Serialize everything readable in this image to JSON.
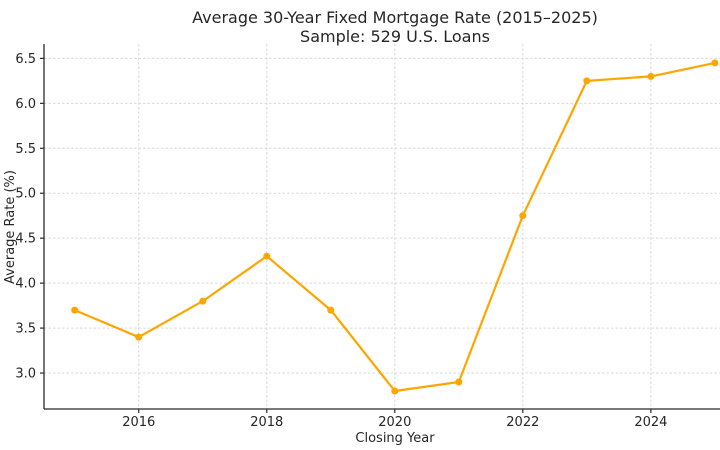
{
  "chart_data": {
    "type": "line",
    "title": "Average 30-Year Fixed Mortgage Rate (2015–2025)",
    "subtitle": "Sample: 529 U.S. Loans",
    "xlabel": "Closing Year",
    "ylabel": "Average Rate (%)",
    "x": [
      2015,
      2016,
      2017,
      2018,
      2019,
      2020,
      2021,
      2022,
      2023,
      2024,
      2025
    ],
    "values": [
      3.7,
      3.4,
      3.8,
      4.3,
      3.7,
      2.8,
      2.9,
      4.75,
      6.25,
      6.3,
      6.45
    ],
    "x_ticks": [
      2016,
      2018,
      2020,
      2022,
      2024
    ],
    "y_ticks": [
      3.0,
      3.5,
      4.0,
      4.5,
      5.0,
      5.5,
      6.0,
      6.5
    ],
    "xlim": [
      2014.52,
      2025.08
    ],
    "ylim": [
      2.6,
      6.66
    ],
    "grid": true,
    "grid_style": "dashed",
    "legend": "none",
    "colors": {
      "line": "#FFA500",
      "marker": "#FFA500",
      "grid": "#d9d9d9",
      "spine": "#2b2b2b",
      "tick": "#2b2b2b",
      "text": "#262626",
      "background": "#ffffff"
    }
  }
}
